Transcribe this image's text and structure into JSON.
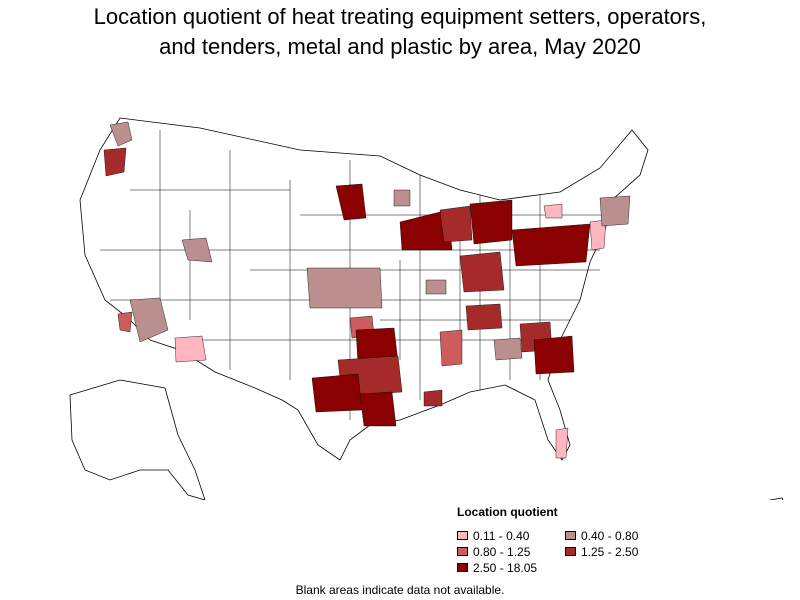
{
  "title_line1": "Location quotient of heat treating equipment setters, operators,",
  "title_line2": "and tenders, metal and plastic by area, May 2020",
  "legend": {
    "title": "Location quotient",
    "items": [
      {
        "label": "0.11 - 0.40",
        "color": "#ffb6c1"
      },
      {
        "label": "0.40 - 0.80",
        "color": "#bc8f8f"
      },
      {
        "label": "0.80 - 1.25",
        "color": "#cd5c5c"
      },
      {
        "label": "1.25 - 2.50",
        "color": "#a52a2a"
      },
      {
        "label": "2.50 - 18.05",
        "color": "#8b0000"
      }
    ]
  },
  "footnote": "Blank areas indicate data not available."
}
